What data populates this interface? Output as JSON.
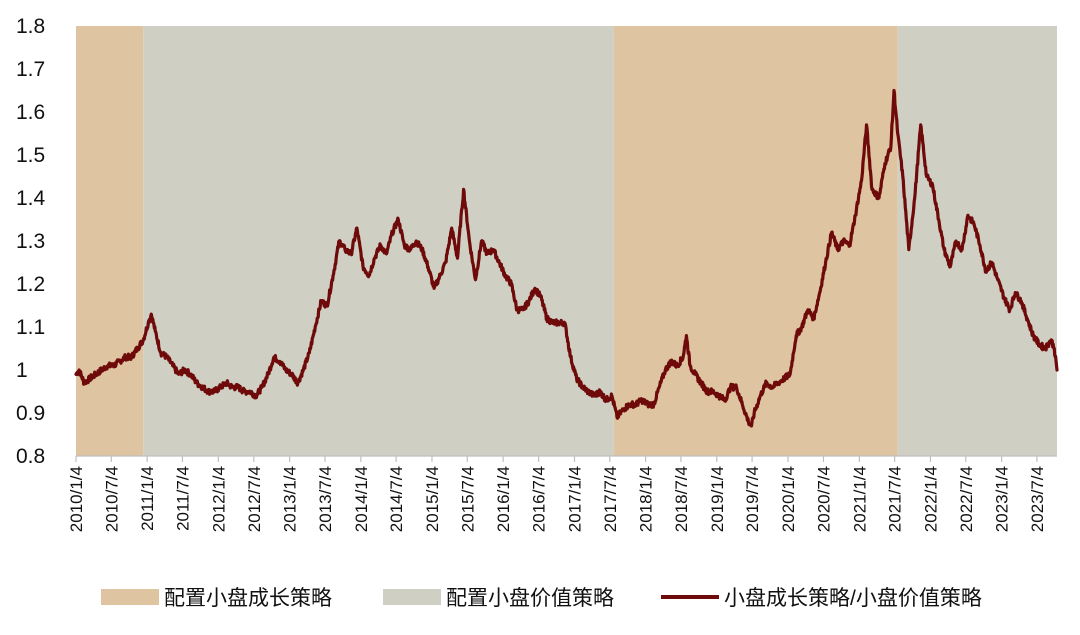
{
  "chart_data": {
    "type": "line",
    "title": "",
    "xlabel": "",
    "ylabel": "",
    "ylim": [
      0.8,
      1.8
    ],
    "y_ticks": [
      "0.8",
      "0.9",
      "1",
      "1.1",
      "1.2",
      "1.3",
      "1.4",
      "1.5",
      "1.6",
      "1.7",
      "1.8"
    ],
    "x_range": [
      "2010-01-04",
      "2023-10-15"
    ],
    "x_ticks": [
      "2010/1/4",
      "2010/7/4",
      "2011/1/4",
      "2011/7/4",
      "2012/1/4",
      "2012/7/4",
      "2013/1/4",
      "2013/7/4",
      "2014/1/4",
      "2014/7/4",
      "2015/1/4",
      "2015/7/4",
      "2016/1/4",
      "2016/7/4",
      "2017/1/4",
      "2017/7/4",
      "2018/1/4",
      "2018/7/4",
      "2019/1/4",
      "2019/7/4",
      "2020/1/4",
      "2020/7/4",
      "2021/1/4",
      "2021/7/4",
      "2022/1/4",
      "2022/7/4",
      "2023/1/4",
      "2023/7/4"
    ],
    "grid": false,
    "legend_position": "bottom",
    "regimes": [
      {
        "name": "配置小盘成长策略",
        "start": "2010-01-04",
        "end": "2010-12-15",
        "color": "#dec4a0"
      },
      {
        "name": "配置小盘价值策略",
        "start": "2010-12-15",
        "end": "2017-07-25",
        "color": "#cfcfc3"
      },
      {
        "name": "配置小盘成长策略",
        "start": "2017-07-25",
        "end": "2021-07-20",
        "color": "#dec4a0"
      },
      {
        "name": "配置小盘价值策略",
        "start": "2021-07-20",
        "end": "2023-10-15",
        "color": "#cfcfc3"
      }
    ],
    "series": [
      {
        "name": "小盘成长策略/小盘价值策略",
        "color": "#6e0a0a",
        "points": [
          [
            "2010-01-04",
            0.99
          ],
          [
            "2010-01-20",
            1.0
          ],
          [
            "2010-02-15",
            0.97
          ],
          [
            "2010-03-15",
            0.98
          ],
          [
            "2010-04-15",
            0.99
          ],
          [
            "2010-05-15",
            1.0
          ],
          [
            "2010-06-15",
            1.01
          ],
          [
            "2010-07-15",
            1.01
          ],
          [
            "2010-08-15",
            1.02
          ],
          [
            "2010-09-15",
            1.03
          ],
          [
            "2010-10-15",
            1.03
          ],
          [
            "2010-11-15",
            1.05
          ],
          [
            "2010-12-15",
            1.07
          ],
          [
            "2011-01-10",
            1.11
          ],
          [
            "2011-01-25",
            1.13
          ],
          [
            "2011-02-15",
            1.09
          ],
          [
            "2011-03-15",
            1.04
          ],
          [
            "2011-04-15",
            1.03
          ],
          [
            "2011-05-15",
            1.01
          ],
          [
            "2011-06-15",
            0.99
          ],
          [
            "2011-07-15",
            1.0
          ],
          [
            "2011-08-15",
            0.99
          ],
          [
            "2011-09-15",
            0.97
          ],
          [
            "2011-10-15",
            0.96
          ],
          [
            "2011-11-15",
            0.95
          ],
          [
            "2011-12-15",
            0.95
          ],
          [
            "2012-01-15",
            0.96
          ],
          [
            "2012-02-15",
            0.97
          ],
          [
            "2012-03-15",
            0.96
          ],
          [
            "2012-04-15",
            0.96
          ],
          [
            "2012-05-15",
            0.95
          ],
          [
            "2012-06-15",
            0.95
          ],
          [
            "2012-07-15",
            0.94
          ],
          [
            "2012-08-15",
            0.96
          ],
          [
            "2012-09-15",
            0.99
          ],
          [
            "2012-10-15",
            1.03
          ],
          [
            "2012-11-15",
            1.02
          ],
          [
            "2012-12-15",
            1.0
          ],
          [
            "2013-01-15",
            0.99
          ],
          [
            "2013-02-15",
            0.97
          ],
          [
            "2013-03-15",
            1.0
          ],
          [
            "2013-04-15",
            1.04
          ],
          [
            "2013-05-15",
            1.1
          ],
          [
            "2013-06-15",
            1.16
          ],
          [
            "2013-07-15",
            1.15
          ],
          [
            "2013-08-15",
            1.22
          ],
          [
            "2013-09-15",
            1.3
          ],
          [
            "2013-10-15",
            1.28
          ],
          [
            "2013-11-15",
            1.27
          ],
          [
            "2013-12-15",
            1.33
          ],
          [
            "2014-01-15",
            1.24
          ],
          [
            "2014-02-15",
            1.22
          ],
          [
            "2014-03-15",
            1.26
          ],
          [
            "2014-04-15",
            1.29
          ],
          [
            "2014-05-15",
            1.27
          ],
          [
            "2014-06-15",
            1.32
          ],
          [
            "2014-07-15",
            1.35
          ],
          [
            "2014-08-15",
            1.29
          ],
          [
            "2014-09-15",
            1.28
          ],
          [
            "2014-10-15",
            1.3
          ],
          [
            "2014-11-15",
            1.28
          ],
          [
            "2014-12-15",
            1.24
          ],
          [
            "2015-01-15",
            1.19
          ],
          [
            "2015-02-15",
            1.22
          ],
          [
            "2015-03-15",
            1.25
          ],
          [
            "2015-04-15",
            1.33
          ],
          [
            "2015-05-15",
            1.26
          ],
          [
            "2015-06-15",
            1.42
          ],
          [
            "2015-07-15",
            1.3
          ],
          [
            "2015-08-15",
            1.21
          ],
          [
            "2015-09-15",
            1.3
          ],
          [
            "2015-10-15",
            1.27
          ],
          [
            "2015-11-15",
            1.28
          ],
          [
            "2015-12-15",
            1.25
          ],
          [
            "2016-01-15",
            1.22
          ],
          [
            "2016-02-15",
            1.2
          ],
          [
            "2016-03-15",
            1.14
          ],
          [
            "2016-04-15",
            1.14
          ],
          [
            "2016-05-15",
            1.16
          ],
          [
            "2016-06-15",
            1.19
          ],
          [
            "2016-07-15",
            1.17
          ],
          [
            "2016-08-15",
            1.12
          ],
          [
            "2016-09-15",
            1.11
          ],
          [
            "2016-10-15",
            1.11
          ],
          [
            "2016-11-15",
            1.11
          ],
          [
            "2016-12-15",
            1.03
          ],
          [
            "2017-01-15",
            0.98
          ],
          [
            "2017-02-15",
            0.96
          ],
          [
            "2017-03-15",
            0.95
          ],
          [
            "2017-04-15",
            0.94
          ],
          [
            "2017-05-15",
            0.95
          ],
          [
            "2017-06-15",
            0.93
          ],
          [
            "2017-07-15",
            0.94
          ],
          [
            "2017-08-10",
            0.89
          ],
          [
            "2017-09-15",
            0.91
          ],
          [
            "2017-10-15",
            0.92
          ],
          [
            "2017-11-15",
            0.92
          ],
          [
            "2017-12-15",
            0.93
          ],
          [
            "2018-01-15",
            0.92
          ],
          [
            "2018-02-15",
            0.92
          ],
          [
            "2018-03-15",
            0.96
          ],
          [
            "2018-04-15",
            1.0
          ],
          [
            "2018-05-15",
            1.02
          ],
          [
            "2018-06-15",
            1.01
          ],
          [
            "2018-07-15",
            1.03
          ],
          [
            "2018-08-01",
            1.08
          ],
          [
            "2018-08-20",
            1.01
          ],
          [
            "2018-09-15",
            0.99
          ],
          [
            "2018-10-15",
            0.97
          ],
          [
            "2018-11-15",
            0.95
          ],
          [
            "2018-12-15",
            0.95
          ],
          [
            "2019-01-15",
            0.94
          ],
          [
            "2019-02-15",
            0.93
          ],
          [
            "2019-03-15",
            0.96
          ],
          [
            "2019-04-15",
            0.96
          ],
          [
            "2019-05-15",
            0.92
          ],
          [
            "2019-06-15",
            0.88
          ],
          [
            "2019-07-01",
            0.87
          ],
          [
            "2019-07-15",
            0.9
          ],
          [
            "2019-08-15",
            0.94
          ],
          [
            "2019-09-15",
            0.97
          ],
          [
            "2019-10-15",
            0.96
          ],
          [
            "2019-11-15",
            0.97
          ],
          [
            "2019-12-15",
            0.98
          ],
          [
            "2020-01-15",
            0.99
          ],
          [
            "2020-02-15",
            1.08
          ],
          [
            "2020-03-15",
            1.1
          ],
          [
            "2020-04-15",
            1.14
          ],
          [
            "2020-05-15",
            1.12
          ],
          [
            "2020-06-15",
            1.18
          ],
          [
            "2020-07-15",
            1.25
          ],
          [
            "2020-08-15",
            1.32
          ],
          [
            "2020-09-15",
            1.28
          ],
          [
            "2020-10-15",
            1.3
          ],
          [
            "2020-11-15",
            1.29
          ],
          [
            "2020-12-15",
            1.36
          ],
          [
            "2021-01-15",
            1.44
          ],
          [
            "2021-02-10",
            1.57
          ],
          [
            "2021-03-10",
            1.42
          ],
          [
            "2021-04-15",
            1.4
          ],
          [
            "2021-05-15",
            1.48
          ],
          [
            "2021-06-15",
            1.52
          ],
          [
            "2021-07-01",
            1.65
          ],
          [
            "2021-07-20",
            1.55
          ],
          [
            "2021-08-15",
            1.45
          ],
          [
            "2021-09-15",
            1.28
          ],
          [
            "2021-10-15",
            1.4
          ],
          [
            "2021-11-15",
            1.57
          ],
          [
            "2021-12-15",
            1.45
          ],
          [
            "2022-01-15",
            1.43
          ],
          [
            "2022-02-15",
            1.35
          ],
          [
            "2022-03-15",
            1.28
          ],
          [
            "2022-04-15",
            1.24
          ],
          [
            "2022-05-15",
            1.3
          ],
          [
            "2022-06-15",
            1.28
          ],
          [
            "2022-07-15",
            1.36
          ],
          [
            "2022-08-15",
            1.34
          ],
          [
            "2022-09-15",
            1.29
          ],
          [
            "2022-10-15",
            1.23
          ],
          [
            "2022-11-15",
            1.25
          ],
          [
            "2022-12-15",
            1.21
          ],
          [
            "2023-01-15",
            1.17
          ],
          [
            "2023-02-15",
            1.14
          ],
          [
            "2023-03-15",
            1.18
          ],
          [
            "2023-04-15",
            1.16
          ],
          [
            "2023-05-15",
            1.12
          ],
          [
            "2023-06-15",
            1.08
          ],
          [
            "2023-07-15",
            1.06
          ],
          [
            "2023-08-15",
            1.05
          ],
          [
            "2023-09-15",
            1.07
          ],
          [
            "2023-10-01",
            1.05
          ],
          [
            "2023-10-15",
            1.0
          ]
        ]
      }
    ],
    "legend": [
      {
        "label": "配置小盘成长策略",
        "kind": "swatch",
        "color": "#dec4a0"
      },
      {
        "label": "配置小盘价值策略",
        "kind": "swatch",
        "color": "#cfcfc3"
      },
      {
        "label": "小盘成长策略/小盘价值策略",
        "kind": "line",
        "color": "#6e0a0a"
      }
    ]
  }
}
